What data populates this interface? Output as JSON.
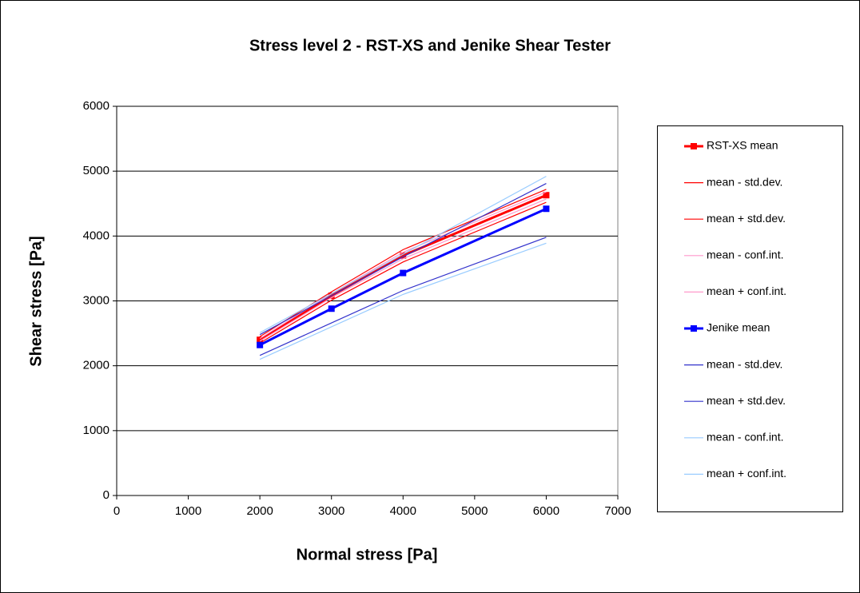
{
  "chart_data": {
    "type": "line",
    "title": "Stress level 2 - RST-XS and Jenike Shear Tester",
    "x_label": "Normal stress [Pa]",
    "y_label": "Shear stress [Pa]",
    "x": [
      2000,
      3000,
      4000,
      6000
    ],
    "series": [
      {
        "name": "RST-XS mean",
        "color": "#ff0000",
        "marker": "square",
        "values": [
          2400,
          3080,
          3700,
          4630
        ]
      },
      {
        "name": "mean - std.dev.",
        "color": "#ff0000",
        "values": [
          2350,
          3010,
          3600,
          4520
        ]
      },
      {
        "name": "mean + std.dev.",
        "color": "#ff0000",
        "values": [
          2450,
          3140,
          3790,
          4720
        ]
      },
      {
        "name": "mean - conf.int.",
        "color": "#ff99cc",
        "values": [
          2380,
          3050,
          3650,
          4570
        ]
      },
      {
        "name": "mean + conf.int.",
        "color": "#ff99cc",
        "values": [
          2420,
          3110,
          3750,
          4680
        ]
      },
      {
        "name": "Jenike mean",
        "color": "#0000ff",
        "marker": "square",
        "values": [
          2320,
          2880,
          3430,
          4420
        ]
      },
      {
        "name": "mean - std.dev.",
        "color": "#3333cc",
        "values": [
          2160,
          2660,
          3160,
          3980
        ]
      },
      {
        "name": "mean + std.dev.",
        "color": "#3333cc",
        "values": [
          2480,
          3080,
          3680,
          4810
        ]
      },
      {
        "name": "mean - conf.int.",
        "color": "#99ccff",
        "values": [
          2100,
          2600,
          3100,
          3890
        ]
      },
      {
        "name": "mean + conf.int.",
        "color": "#99ccff",
        "values": [
          2510,
          3110,
          3720,
          4920
        ]
      }
    ],
    "xlim": [
      0,
      7000
    ],
    "xticks": [
      0,
      1000,
      2000,
      3000,
      4000,
      5000,
      6000,
      7000
    ],
    "ylim": [
      0,
      6000
    ],
    "yticks": [
      0,
      1000,
      2000,
      3000,
      4000,
      5000,
      6000
    ],
    "grid": true,
    "legend": "right"
  }
}
